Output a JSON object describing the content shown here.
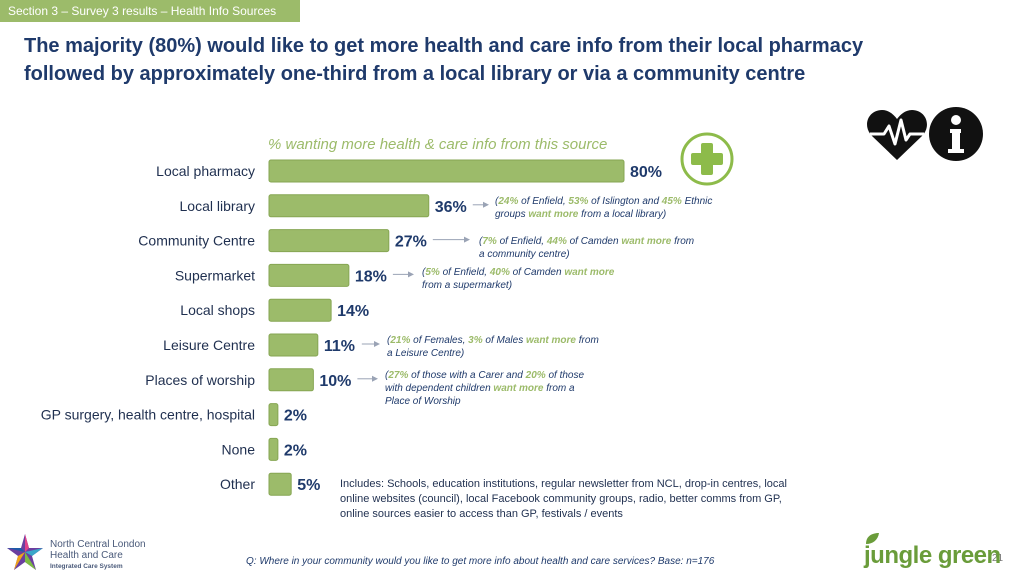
{
  "section_tag": "Section 3 – Survey 3 results – Health Info Sources",
  "title": {
    "line1": "The majority (80%) would like to get more health and care info from their local pharmacy",
    "line2": "followed by approximately one-third from a local library or via a community centre"
  },
  "chart_data": {
    "type": "bar",
    "orientation": "horizontal",
    "title": "% wanting more health & care info from this source",
    "categories": [
      "Local pharmacy",
      "Local library",
      "Community Centre",
      "Supermarket",
      "Local shops",
      "Leisure Centre",
      "Places of worship",
      "GP surgery, health centre, hospital",
      "None",
      "Other"
    ],
    "values": [
      80,
      36,
      27,
      18,
      14,
      11,
      10,
      2,
      2,
      5
    ],
    "value_labels": [
      "80%",
      "36%",
      "27%",
      "18%",
      "14%",
      "11%",
      "10%",
      "2%",
      "2%",
      "5%"
    ],
    "unit": "%",
    "xlim": [
      0,
      100
    ],
    "grid": false,
    "colors": {
      "bar": "#9cbb6a",
      "bar_dark": "#86a653",
      "label": "#1f3a6b"
    }
  },
  "notes": {
    "library": {
      "p1": "(",
      "v1": "24%",
      "p2": " of Enfield, ",
      "v2": "53%",
      "p3": " of Islington and ",
      "v3": "45%",
      "p4": " Ethnic groups ",
      "v4": "want more",
      "p5": " from a local library)"
    },
    "community": {
      "p1": "(",
      "v1": "7%",
      "p2": " of Enfield, ",
      "v2": "44%",
      "p3": " of Camden ",
      "v3": "want more",
      "p4": " from a community centre)"
    },
    "supermarket": {
      "p1": "(",
      "v1": "5%",
      "p2": " of Enfield, ",
      "v2": "40%",
      "p3": " of Camden ",
      "v3": "want more",
      "p4": " from a supermarket)"
    },
    "leisure": {
      "p1": "(",
      "v1": "21%",
      "p2": " of Females, ",
      "v2": "3%",
      "p3": " of Males  ",
      "v3": "want more",
      "p4": " from a Leisure Centre)"
    },
    "worship": {
      "p1": "(",
      "v1": "27%",
      "p2": " of those with a Carer and ",
      "v2": "20%",
      "p3": " of those with dependent children  ",
      "v3": "want more",
      "p4": " from a Place of Worship"
    }
  },
  "other_note": "Includes: Schools, education institutions, regular newsletter from NCL, drop-in centres, local online websites (council), local Facebook community groups, radio, better comms from GP, online sources easier to access than GP, festivals / events",
  "footer_question": "Q: Where in your community would you like to get more info about health and care services? Base: n=176",
  "page_number": "21",
  "logos": {
    "nclhc_line1": "North Central London",
    "nclhc_line2": "Health and Care",
    "nclhc_line3": "Integrated Care System",
    "jungle_green": "jungle green"
  },
  "colors": {
    "accent": "#9cbb6a",
    "navy": "#1f3a6b"
  },
  "icons": [
    "health-cross-icon",
    "heartbeat-icon",
    "info-icon",
    "arrow-icon"
  ]
}
